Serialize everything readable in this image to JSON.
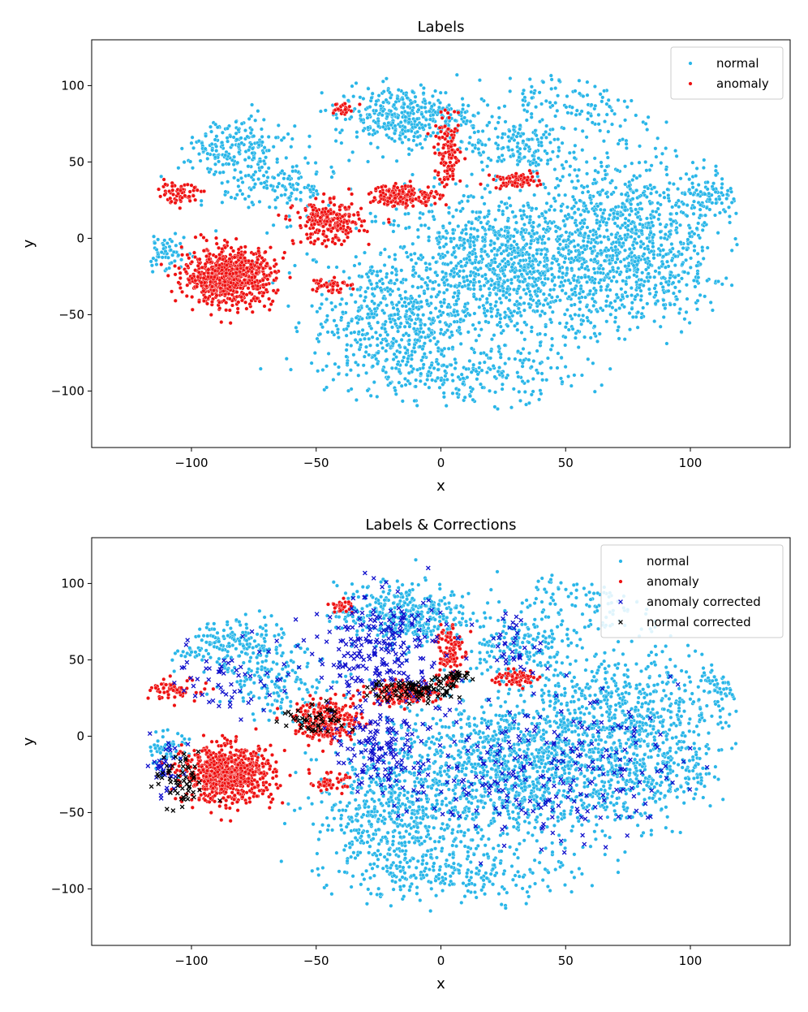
{
  "chart_data": [
    {
      "type": "scatter",
      "title": "Labels",
      "xlabel": "x",
      "ylabel": "y",
      "xlim": [
        -140,
        140
      ],
      "ylim": [
        -137,
        130
      ],
      "xticks": [
        -100,
        -50,
        0,
        50,
        100
      ],
      "yticks": [
        -100,
        -50,
        0,
        50,
        100
      ],
      "xtick_labels": [
        "−100",
        "−50",
        "0",
        "50",
        "100"
      ],
      "ytick_labels": [
        "−100",
        "−50",
        "0",
        "50",
        "100"
      ],
      "legend_position": "top-right",
      "series": [
        {
          "name": "normal",
          "marker": "dot",
          "color": "#29b6e8",
          "clusters": [
            {
              "cx": 30,
              "cy": -20,
              "rx": 62,
              "ry": 55,
              "n": 1400
            },
            {
              "cx": -20,
              "cy": -55,
              "rx": 35,
              "ry": 45,
              "n": 450
            },
            {
              "cx": -15,
              "cy": 80,
              "rx": 30,
              "ry": 22,
              "n": 380
            },
            {
              "cx": 30,
              "cy": 60,
              "rx": 22,
              "ry": 20,
              "n": 150
            },
            {
              "cx": 75,
              "cy": 20,
              "rx": 40,
              "ry": 45,
              "n": 400
            },
            {
              "cx": 85,
              "cy": -20,
              "rx": 35,
              "ry": 40,
              "n": 320
            },
            {
              "cx": -85,
              "cy": 60,
              "rx": 25,
              "ry": 22,
              "n": 200
            },
            {
              "cx": -65,
              "cy": 35,
              "rx": 25,
              "ry": 25,
              "n": 150
            },
            {
              "cx": 10,
              "cy": -90,
              "rx": 50,
              "ry": 20,
              "n": 220
            },
            {
              "cx": 60,
              "cy": 90,
              "rx": 45,
              "ry": 25,
              "n": 160
            },
            {
              "cx": 110,
              "cy": 30,
              "rx": 12,
              "ry": 20,
              "n": 80
            },
            {
              "cx": -110,
              "cy": -10,
              "rx": 10,
              "ry": 15,
              "n": 60
            }
          ]
        },
        {
          "name": "anomaly",
          "marker": "dot",
          "color": "#ee1111",
          "clusters": [
            {
              "cx": -85,
              "cy": -25,
              "rx": 20,
              "ry": 20,
              "n": 750
            },
            {
              "cx": -45,
              "cy": 10,
              "rx": 15,
              "ry": 15,
              "n": 250
            },
            {
              "cx": -15,
              "cy": 28,
              "rx": 15,
              "ry": 8,
              "n": 180
            },
            {
              "cx": 3,
              "cy": 55,
              "rx": 6,
              "ry": 25,
              "n": 120
            },
            {
              "cx": 30,
              "cy": 38,
              "rx": 10,
              "ry": 6,
              "n": 70
            },
            {
              "cx": -105,
              "cy": 30,
              "rx": 12,
              "ry": 8,
              "n": 70
            },
            {
              "cx": -45,
              "cy": -30,
              "rx": 8,
              "ry": 6,
              "n": 50
            },
            {
              "cx": -40,
              "cy": 85,
              "rx": 5,
              "ry": 5,
              "n": 30
            }
          ]
        }
      ]
    },
    {
      "type": "scatter",
      "title": "Labels & Corrections",
      "xlabel": "x",
      "ylabel": "y",
      "xlim": [
        -140,
        140
      ],
      "ylim": [
        -137,
        130
      ],
      "xticks": [
        -100,
        -50,
        0,
        50,
        100
      ],
      "yticks": [
        -100,
        -50,
        0,
        50,
        100
      ],
      "xtick_labels": [
        "−100",
        "−50",
        "0",
        "50",
        "100"
      ],
      "ytick_labels": [
        "−100",
        "−50",
        "0",
        "50",
        "100"
      ],
      "legend_position": "top-right",
      "series": [
        {
          "name": "normal",
          "marker": "dot",
          "color": "#29b6e8",
          "clusters": [
            {
              "cx": 30,
              "cy": -20,
              "rx": 62,
              "ry": 55,
              "n": 1400
            },
            {
              "cx": -20,
              "cy": -55,
              "rx": 35,
              "ry": 45,
              "n": 450
            },
            {
              "cx": -15,
              "cy": 80,
              "rx": 30,
              "ry": 22,
              "n": 380
            },
            {
              "cx": 30,
              "cy": 60,
              "rx": 22,
              "ry": 20,
              "n": 150
            },
            {
              "cx": 75,
              "cy": 20,
              "rx": 40,
              "ry": 45,
              "n": 400
            },
            {
              "cx": 85,
              "cy": -20,
              "rx": 35,
              "ry": 40,
              "n": 320
            },
            {
              "cx": -85,
              "cy": 60,
              "rx": 25,
              "ry": 22,
              "n": 200
            },
            {
              "cx": -65,
              "cy": 35,
              "rx": 25,
              "ry": 25,
              "n": 150
            },
            {
              "cx": 10,
              "cy": -90,
              "rx": 50,
              "ry": 20,
              "n": 220
            },
            {
              "cx": 60,
              "cy": 90,
              "rx": 45,
              "ry": 25,
              "n": 160
            },
            {
              "cx": 110,
              "cy": 30,
              "rx": 12,
              "ry": 20,
              "n": 80
            },
            {
              "cx": -110,
              "cy": -10,
              "rx": 10,
              "ry": 15,
              "n": 60
            }
          ]
        },
        {
          "name": "anomaly",
          "marker": "dot",
          "color": "#ee1111",
          "clusters": [
            {
              "cx": -85,
              "cy": -25,
              "rx": 20,
              "ry": 20,
              "n": 750
            },
            {
              "cx": -45,
              "cy": 10,
              "rx": 15,
              "ry": 15,
              "n": 250
            },
            {
              "cx": -15,
              "cy": 28,
              "rx": 15,
              "ry": 8,
              "n": 180
            },
            {
              "cx": 3,
              "cy": 55,
              "rx": 6,
              "ry": 25,
              "n": 120
            },
            {
              "cx": 30,
              "cy": 38,
              "rx": 10,
              "ry": 6,
              "n": 70
            },
            {
              "cx": -105,
              "cy": 30,
              "rx": 12,
              "ry": 8,
              "n": 70
            },
            {
              "cx": -45,
              "cy": -30,
              "rx": 8,
              "ry": 6,
              "n": 50
            },
            {
              "cx": -40,
              "cy": 85,
              "rx": 5,
              "ry": 5,
              "n": 30
            }
          ]
        },
        {
          "name": "anomaly corrected",
          "marker": "x",
          "color": "#1010cc",
          "clusters": [
            {
              "cx": -25,
              "cy": 55,
              "rx": 30,
              "ry": 45,
              "n": 260
            },
            {
              "cx": -25,
              "cy": -10,
              "rx": 20,
              "ry": 25,
              "n": 120
            },
            {
              "cx": 40,
              "cy": -20,
              "rx": 60,
              "ry": 55,
              "n": 260
            },
            {
              "cx": -85,
              "cy": 40,
              "rx": 25,
              "ry": 30,
              "n": 60
            },
            {
              "cx": 30,
              "cy": 60,
              "rx": 12,
              "ry": 20,
              "n": 35
            },
            {
              "cx": -110,
              "cy": -20,
              "rx": 10,
              "ry": 25,
              "n": 40
            }
          ]
        },
        {
          "name": "normal corrected",
          "marker": "x",
          "color": "#000000",
          "clusters": [
            {
              "cx": -10,
              "cy": 30,
              "rx": 20,
              "ry": 8,
              "n": 90
            },
            {
              "cx": -105,
              "cy": -30,
              "rx": 12,
              "ry": 20,
              "n": 60
            },
            {
              "cx": -50,
              "cy": 10,
              "rx": 15,
              "ry": 12,
              "n": 45
            },
            {
              "cx": 5,
              "cy": 38,
              "rx": 6,
              "ry": 6,
              "n": 25
            }
          ]
        }
      ]
    }
  ]
}
